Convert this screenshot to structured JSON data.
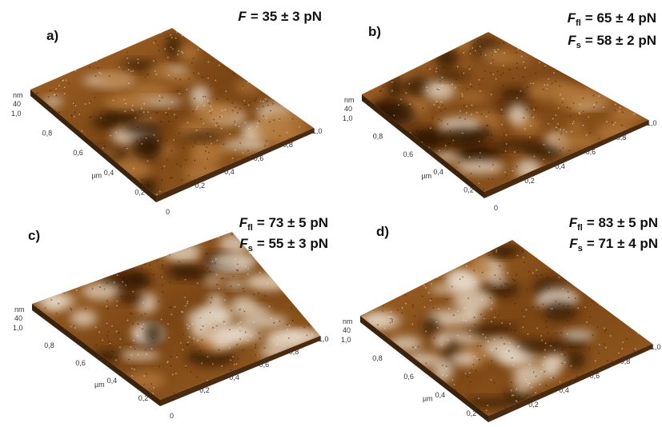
{
  "panels": [
    {
      "label": "a)",
      "forces": [
        {
          "symbol": "F",
          "value": "= 35 ± 3 pN"
        }
      ],
      "axis": {
        "z_unit": "nm",
        "z_tick": "40",
        "y_unit": "µm",
        "y_ticks": [
          "1,0",
          "0,8",
          "0,6",
          "0,4",
          "0,2",
          "0"
        ],
        "x_ticks": [
          "0,2",
          "0,4",
          "0,6",
          "0,8",
          "1,0"
        ]
      }
    },
    {
      "label": "b)",
      "forces": [
        {
          "symbol": "F",
          "subscript": "fl",
          "value": "= 65 ± 4 pN"
        },
        {
          "symbol": "F",
          "subscript": "s",
          "value": "= 58 ± 2 pN"
        }
      ],
      "axis": {
        "z_unit": "nm",
        "z_tick": "40",
        "y_unit": "µm",
        "y_ticks": [
          "1,0",
          "0,8",
          "0,6",
          "0,4",
          "0,2",
          "0"
        ],
        "x_ticks": [
          "0,2",
          "0,4",
          "0,6",
          "0,8",
          "1,0"
        ]
      }
    },
    {
      "label": "c)",
      "forces": [
        {
          "symbol": "F",
          "subscript": "fl",
          "value": "= 73 ± 5 pN"
        },
        {
          "symbol": "F",
          "subscript": "s",
          "value": "= 55 ± 3 pN"
        }
      ],
      "axis": {
        "z_unit": "nm",
        "z_tick": "40",
        "y_unit": "µm",
        "y_ticks": [
          "1,0",
          "0,8",
          "0,6",
          "0,4",
          "0,2",
          "0"
        ],
        "x_ticks": [
          "0,2",
          "0,4",
          "0,6",
          "0,8",
          "1,0"
        ]
      }
    },
    {
      "label": "d)",
      "forces": [
        {
          "symbol": "F",
          "subscript": "fl",
          "value": "= 83 ± 5 pN"
        },
        {
          "symbol": "F",
          "subscript": "s",
          "value": "= 71 ± 4 pN"
        }
      ],
      "axis": {
        "z_unit": "nm",
        "z_tick": "40",
        "y_unit": "µm",
        "y_ticks": [
          "1,0",
          "0,8",
          "0,6",
          "0,4",
          "0,2",
          "0"
        ],
        "x_ticks": [
          "0,2",
          "0,4",
          "0,6",
          "0,8",
          "1,0"
        ]
      }
    }
  ]
}
